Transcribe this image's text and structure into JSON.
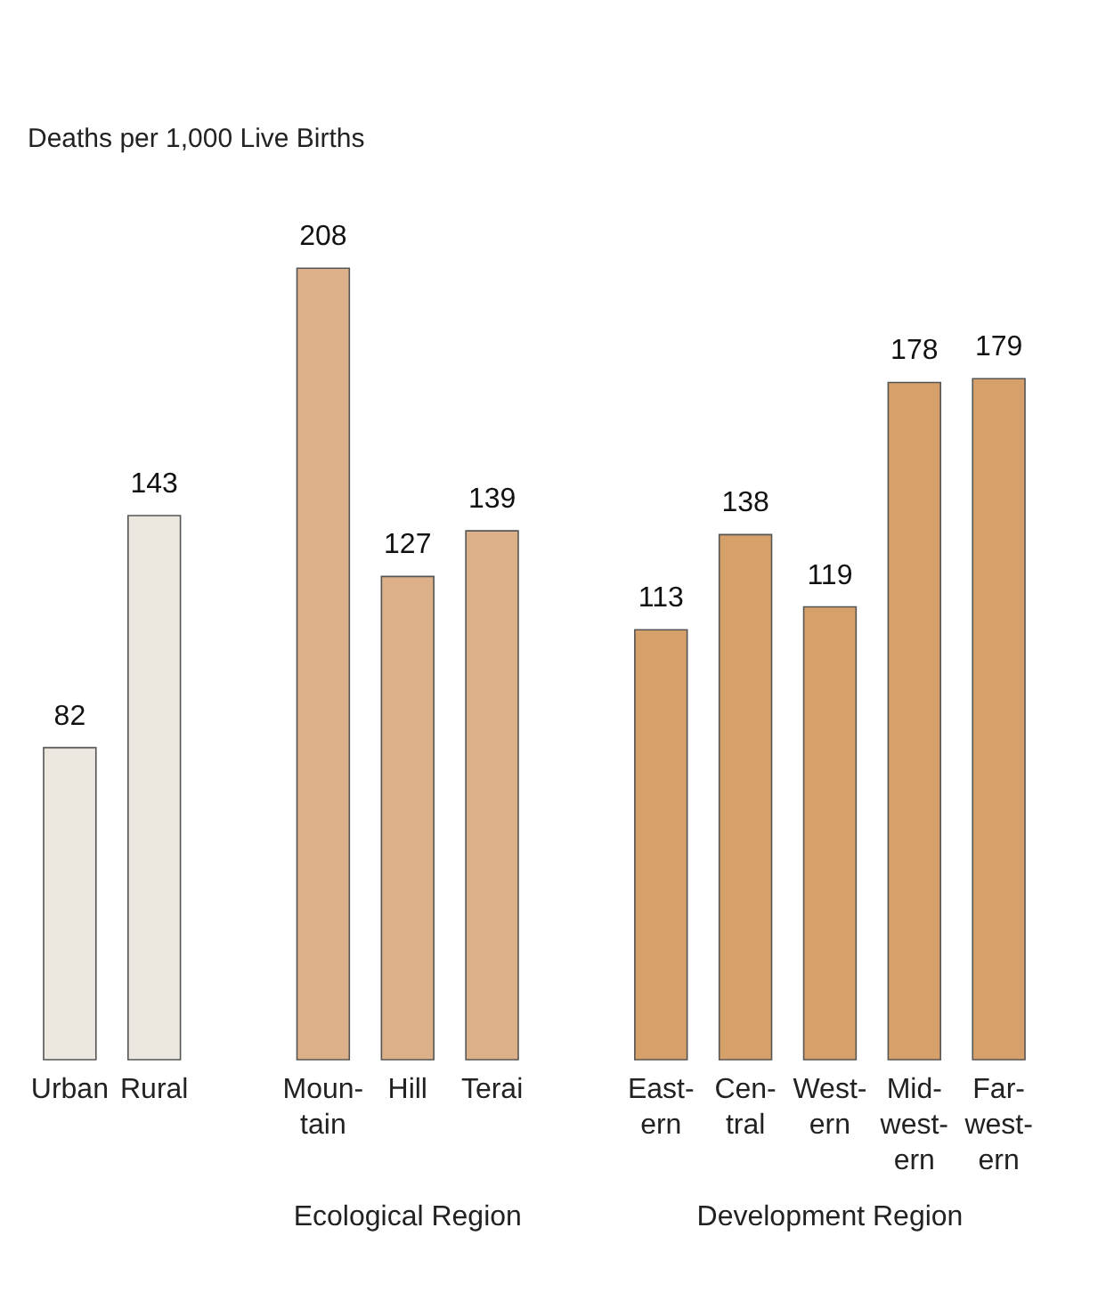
{
  "chart_data": {
    "type": "bar",
    "ylabel": "Deaths per 1,000 Live Births",
    "categories": [
      "Urban",
      "Rural",
      null,
      "Moun-\ntain",
      "Hill",
      "Terai",
      null,
      "East-\nern",
      "Cen-\ntral",
      "West-\nern",
      "Mid-\nwest-\nern",
      "Far-\nwest-\nern"
    ],
    "values": [
      82,
      143,
      null,
      208,
      127,
      139,
      null,
      113,
      138,
      119,
      178,
      179
    ],
    "colors": [
      "#ece8e0",
      "#ece8e0",
      "#ffffff",
      "#dcb088",
      "#dcb088",
      "#dcb088",
      "#ffffff",
      "#d6a06a",
      "#d6a06a",
      "#d6a06a",
      "#d6a06a",
      "#d6a06a"
    ],
    "data_labels": true,
    "annotations": [
      "Ecological Region",
      "Development Region"
    ]
  }
}
